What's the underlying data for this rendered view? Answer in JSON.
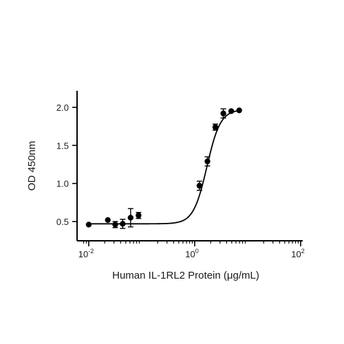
{
  "chart_data": {
    "type": "scatter",
    "title": "",
    "xlabel": "Human IL-1RL2 Protein (μg/mL)",
    "ylabel": "OD 450nm",
    "xscale": "log10",
    "xlim": [
      0.0075,
      100
    ],
    "ylim": [
      0.3,
      2.2
    ],
    "x_ticks": [
      {
        "value": 0.01,
        "base": "10",
        "exp": "-2"
      },
      {
        "value": 1,
        "base": "10",
        "exp": "0"
      },
      {
        "value": 100,
        "base": "10",
        "exp": "2"
      }
    ],
    "y_ticks": [
      {
        "value": 0.5,
        "label": "0.5"
      },
      {
        "value": 1.0,
        "label": "1.0"
      },
      {
        "value": 1.5,
        "label": "1.5"
      },
      {
        "value": 2.0,
        "label": "2.0"
      }
    ],
    "grid": false,
    "legend": "none",
    "series": [
      {
        "points": [
          {
            "x": 0.01,
            "y": 0.46,
            "err": 0.0
          },
          {
            "x": 0.0229,
            "y": 0.52,
            "err": 0.0
          },
          {
            "x": 0.0316,
            "y": 0.46,
            "err": 0.04
          },
          {
            "x": 0.0437,
            "y": 0.47,
            "err": 0.06
          },
          {
            "x": 0.0617,
            "y": 0.55,
            "err": 0.12
          },
          {
            "x": 0.0871,
            "y": 0.58,
            "err": 0.04
          },
          {
            "x": 1.23,
            "y": 0.97,
            "err": 0.06
          },
          {
            "x": 1.74,
            "y": 1.29,
            "err": 0.06
          },
          {
            "x": 2.45,
            "y": 1.74,
            "err": 0.04
          },
          {
            "x": 3.47,
            "y": 1.92,
            "err": 0.06
          },
          {
            "x": 4.9,
            "y": 1.95,
            "err": 0.0
          },
          {
            "x": 6.92,
            "y": 1.96,
            "err": 0.0
          }
        ],
        "fit": {
          "model": "4PL",
          "bottom": 0.47,
          "top": 1.97,
          "ec50": 1.7,
          "hill": 3.4
        }
      }
    ]
  }
}
